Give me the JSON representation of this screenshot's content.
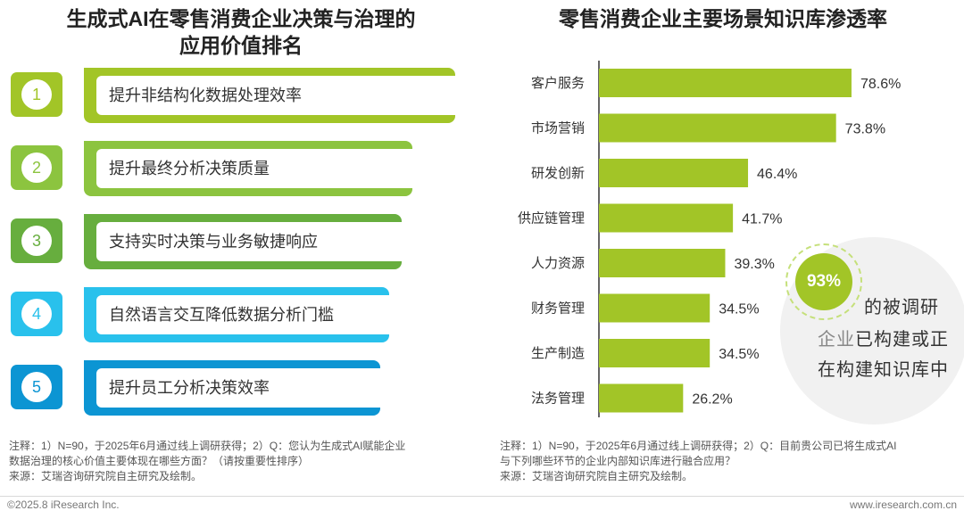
{
  "left_panel": {
    "title_line1": "生成式AI在零售消费企业决策与治理的",
    "title_line2": "应用价值排名",
    "items": [
      {
        "rank": "1",
        "label": "提升非结构化数据处理效率",
        "color": "#a2c527"
      },
      {
        "rank": "2",
        "label": "提升最终分析决策质量",
        "color": "#8cc43f"
      },
      {
        "rank": "3",
        "label": "支持实时决策与业务敏捷响应",
        "color": "#67ae3e"
      },
      {
        "rank": "4",
        "label": "自然语言交互降低数据分析门槛",
        "color": "#29c1ec"
      },
      {
        "rank": "5",
        "label": "提升员工分析决策效率",
        "color": "#0c95d3"
      }
    ],
    "note": {
      "line1": "注释：1）N=90，于2025年6月通过线上调研获得；2）Q：您认为生成式AI赋能企业",
      "line2": "数据治理的核心价值主要体现在哪些方面？（请按重要性排序）",
      "line3": "来源：艾瑞咨询研究院自主研究及绘制。"
    }
  },
  "chart_data": {
    "type": "bar",
    "orientation": "horizontal",
    "title": "零售消费企业主要场景知识库渗透率",
    "categories": [
      "客户服务",
      "市场营销",
      "研发创新",
      "供应链管理",
      "人力资源",
      "财务管理",
      "生产制造",
      "法务管理"
    ],
    "values": [
      78.6,
      73.8,
      46.4,
      41.7,
      39.3,
      34.5,
      34.5,
      26.2
    ],
    "value_labels": [
      "78.6%",
      "73.8%",
      "46.4%",
      "41.7%",
      "39.3%",
      "34.5%",
      "34.5%",
      "26.2%"
    ],
    "xlim": [
      0,
      100
    ],
    "bar_color": "#a2c527",
    "grid": false,
    "legend": "none"
  },
  "callout": {
    "value": "93%",
    "line1": "的被调研",
    "line2_part1": "企业",
    "line2_part2": "已构建或正",
    "line3": "在构建知识库中"
  },
  "right_note": {
    "line1": "注释：1）N=90，于2025年6月通过线上调研获得；2）Q：目前贵公司已将生成式AI",
    "line2": "与下列哪些环节的企业内部知识库进行融合应用？",
    "line3": "来源：艾瑞咨询研究院自主研究及绘制。"
  },
  "footer": {
    "left": "©2025.8 iResearch Inc.",
    "right": "www.iresearch.com.cn"
  }
}
